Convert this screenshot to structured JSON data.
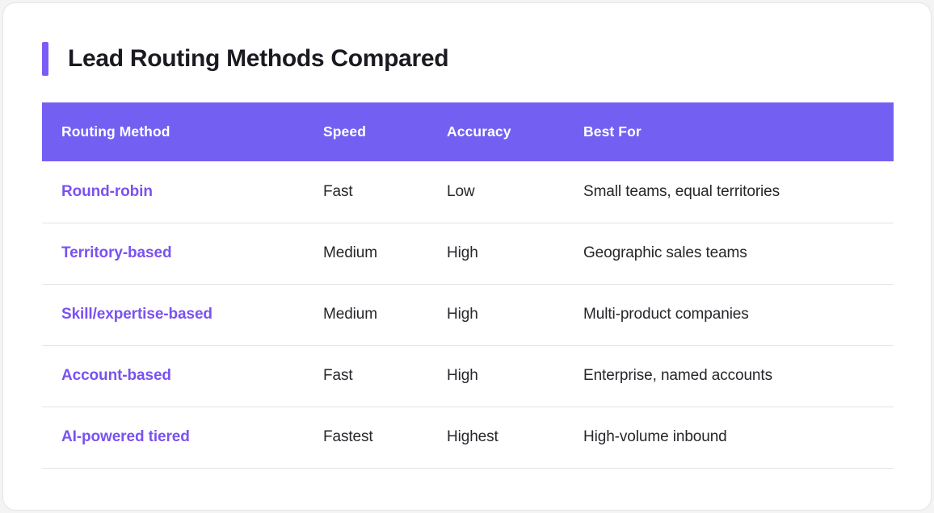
{
  "chart_data": {
    "type": "table",
    "title": "Lead Routing Methods Compared",
    "columns": [
      "Routing Method",
      "Speed",
      "Accuracy",
      "Best For"
    ],
    "rows": [
      [
        "Round-robin",
        "Fast",
        "Low",
        "Small teams, equal territories"
      ],
      [
        "Territory-based",
        "Medium",
        "High",
        "Geographic sales teams"
      ],
      [
        "Skill/expertise-based",
        "Medium",
        "High",
        "Multi-product companies"
      ],
      [
        "Account-based",
        "Fast",
        "High",
        "Enterprise, named accounts"
      ],
      [
        "AI-powered tiered",
        "Fastest",
        "Highest",
        "High-volume inbound"
      ]
    ],
    "layout": {
      "legend": "none",
      "grid": "horizontal row dividers only"
    }
  },
  "colors": {
    "accent_bar": "#7C5CF6",
    "header_background": "#7360F2",
    "header_text": "#FFFFFF",
    "method_text": "#7A52F0",
    "body_text": "#26262B",
    "title_text": "#1A1A20",
    "divider": "#E4E4E7",
    "card_background": "#FFFFFF",
    "card_border": "#E4E4E7",
    "page_background": "#F4F4F5"
  }
}
